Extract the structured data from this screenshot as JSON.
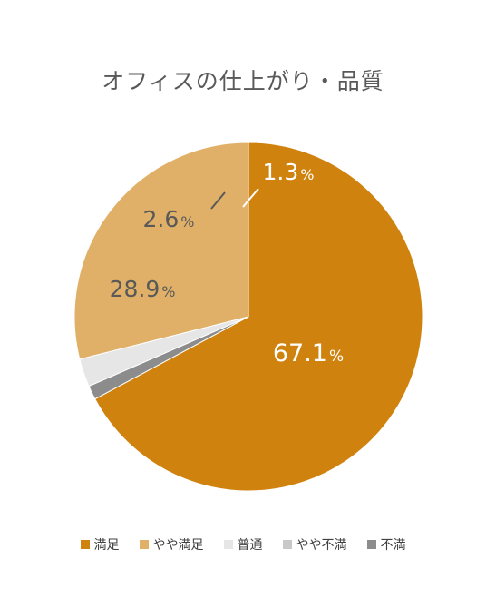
{
  "chart_data": {
    "type": "pie",
    "title": "オフィスの仕上がり・品質",
    "categories": [
      "満足",
      "やや満足",
      "普通",
      "やや不満",
      "不満"
    ],
    "values": [
      67.1,
      28.9,
      2.6,
      0.0,
      1.3
    ],
    "colors": [
      "#D0820E",
      "#E0B068",
      "#E6E6E6",
      "#C8C8C8",
      "#8C8C8C"
    ],
    "labels": [
      {
        "num": "67.1",
        "unit": "%",
        "color": "#ffffff"
      },
      {
        "num": "28.9",
        "unit": "%",
        "color": "#595959"
      },
      {
        "num": "2.6",
        "unit": "%",
        "color": "#595959"
      },
      null,
      {
        "num": "1.3",
        "unit": "%",
        "color": "#ffffff"
      }
    ],
    "legend_position": "bottom"
  }
}
